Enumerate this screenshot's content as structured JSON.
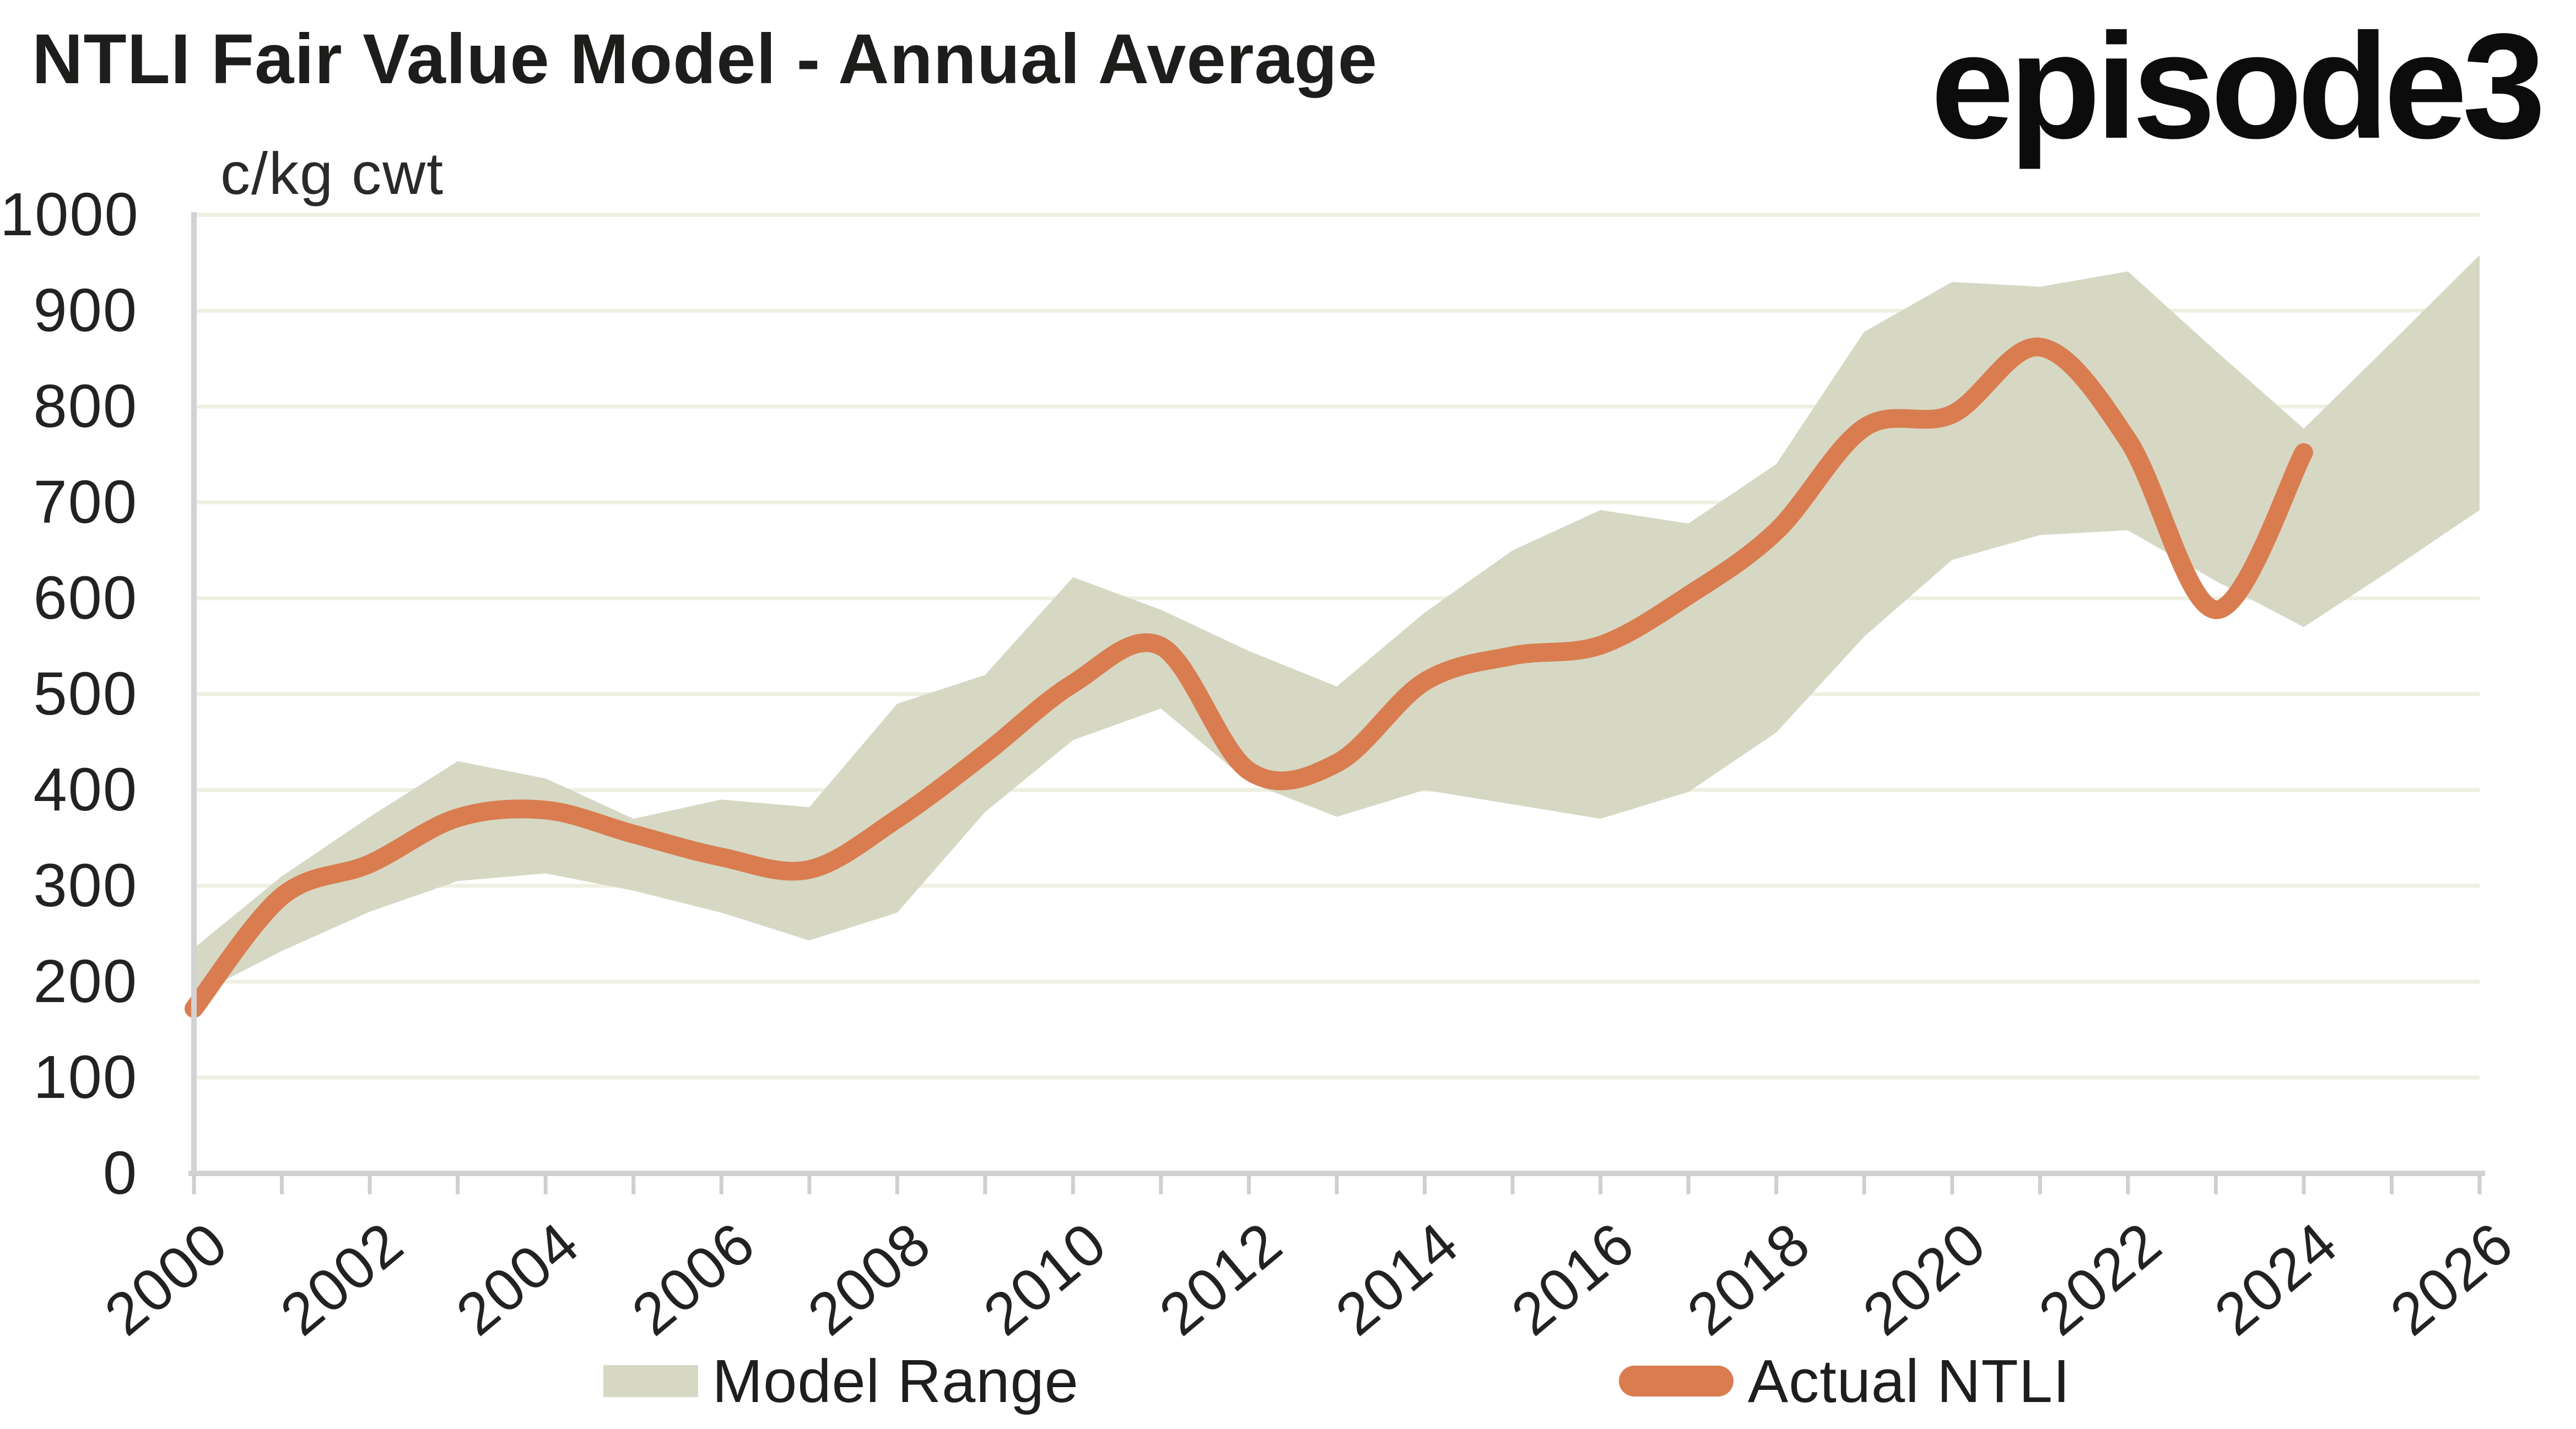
{
  "header": {
    "title": "NTLI Fair Value Model - Annual Average",
    "logo_text": "episode3"
  },
  "chart_data": {
    "type": "area+line",
    "title": "NTLI Fair Value Model - Annual Average",
    "unit_label": "c/kg cwt",
    "ylabel": "c/kg cwt",
    "xlabel": "",
    "xlim": [
      2000,
      2026
    ],
    "ylim": [
      0,
      1000
    ],
    "grid": "horizontal",
    "legend_position": "bottom-center",
    "y_ticks": [
      0,
      100,
      200,
      300,
      400,
      500,
      600,
      700,
      800,
      900,
      1000
    ],
    "x_minor_tick_years": [
      2000,
      2001,
      2002,
      2003,
      2004,
      2005,
      2006,
      2007,
      2008,
      2009,
      2010,
      2011,
      2012,
      2013,
      2014,
      2015,
      2016,
      2017,
      2018,
      2019,
      2020,
      2021,
      2022,
      2023,
      2024,
      2025,
      2026
    ],
    "x_tick_label_years": [
      2000,
      2002,
      2004,
      2006,
      2008,
      2010,
      2012,
      2014,
      2016,
      2018,
      2020,
      2022,
      2024,
      2026
    ],
    "series": [
      {
        "name": "Model Range",
        "type": "band",
        "color": "#d6d8c4",
        "years": [
          2000,
          2001,
          2002,
          2003,
          2004,
          2005,
          2006,
          2007,
          2008,
          2009,
          2010,
          2011,
          2012,
          2013,
          2014,
          2015,
          2016,
          2017,
          2018,
          2019,
          2020,
          2021,
          2022,
          2023,
          2024,
          2025,
          2026
        ],
        "upper": [
          235,
          310,
          372,
          430,
          412,
          370,
          390,
          382,
          490,
          520,
          622,
          588,
          545,
          508,
          585,
          650,
          692,
          678,
          740,
          878,
          930,
          925,
          941,
          858,
          777,
          867,
          958
        ],
        "lower": [
          185,
          232,
          273,
          305,
          313,
          295,
          272,
          243,
          272,
          377,
          452,
          485,
          408,
          372,
          400,
          385,
          370,
          398,
          460,
          560,
          640,
          666,
          671,
          618,
          570,
          630,
          692
        ]
      },
      {
        "name": "Actual NTLI",
        "type": "line",
        "color": "#d97d50",
        "years": [
          2000,
          2001,
          2002,
          2003,
          2004,
          2005,
          2006,
          2007,
          2008,
          2009,
          2010,
          2011,
          2012,
          2013,
          2014,
          2015,
          2016,
          2017,
          2018,
          2019,
          2020,
          2021,
          2022,
          2023,
          2024
        ],
        "values": [
          172,
          289,
          323,
          371,
          379,
          354,
          330,
          317,
          370,
          438,
          511,
          550,
          420,
          428,
          513,
          540,
          551,
          603,
          670,
          778,
          792,
          862,
          765,
          588,
          752
        ]
      }
    ]
  },
  "colors": {
    "background": "#ffffff",
    "gridline": "#efefe2",
    "axis": "#d2d2d2",
    "tick": "#cfcfcf",
    "text": "#1e1e1e",
    "band": "#d6d8c4",
    "line": "#d97d50"
  }
}
